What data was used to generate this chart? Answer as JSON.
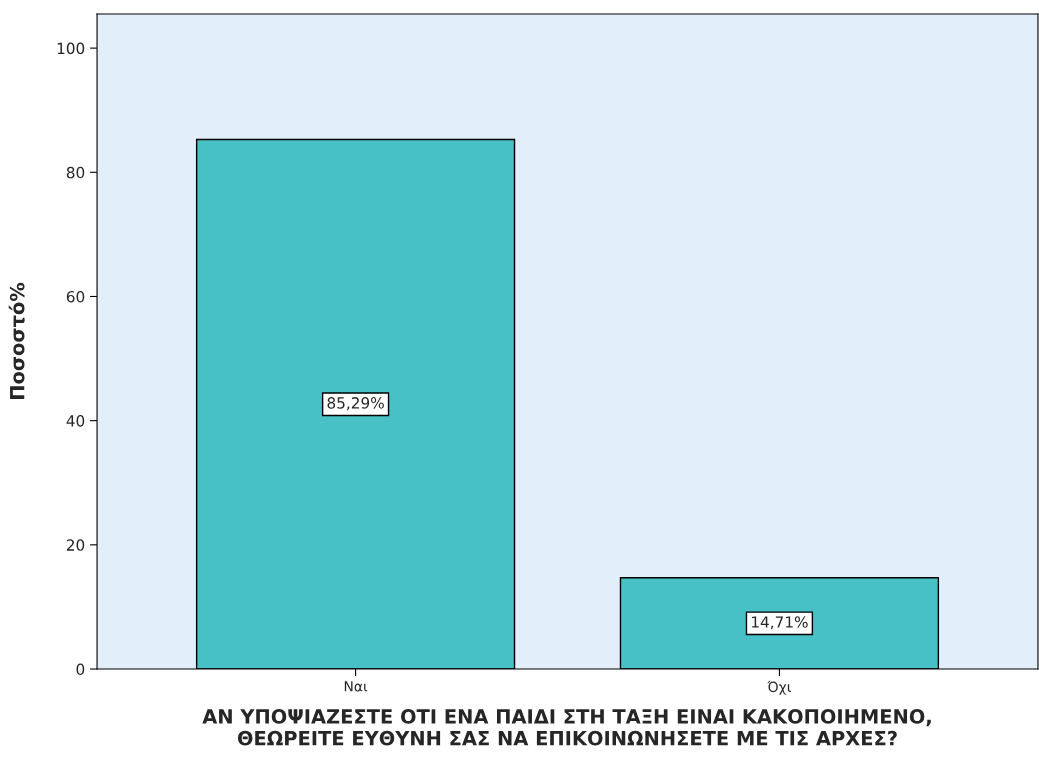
{
  "chart_data": {
    "type": "bar",
    "xlabel": "ΑΝ ΥΠΟΨΙΑΖΕΣΤΕ ΟΤΙ ΕΝΑ ΠΑΙΔΙ ΣΤΗ ΤΑΞΗ ΕΙΝΑΙ ΚΑΚΟΠΟΙΗΜΕΝΟ,\nΘΕΩΡΕΙΤΕ ΕΥΘΥΝΗ ΣΑΣ ΝΑ ΕΠΙΚΟΙΝΩΝΗΣΕΤΕ ΜΕ ΤΙΣ ΑΡΧΕΣ?",
    "ylabel": "Ποσοστό%",
    "categories": [
      "Ναι",
      "Όχι"
    ],
    "values": [
      85.29,
      14.71
    ],
    "value_labels": [
      "85,29%",
      "14,71%"
    ],
    "color": "#48c1c6",
    "ylim": [
      0,
      105.5
    ],
    "yticks": [
      0,
      20,
      40,
      60,
      80,
      100
    ],
    "grid": false,
    "legend": false
  }
}
